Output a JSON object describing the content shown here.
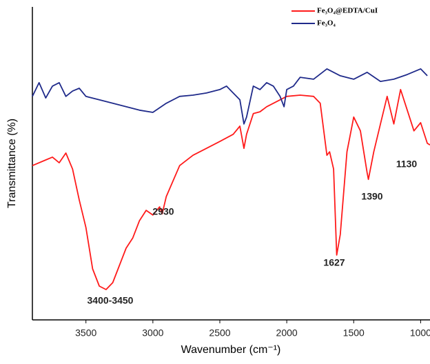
{
  "chart_data": {
    "type": "line",
    "x_label": "Wavenumber (cm⁻¹)",
    "y_label": "Transmittance (%)",
    "xlim": [
      3900,
      930
    ],
    "ylim": [
      0,
      100
    ],
    "xticks": [
      3500,
      3000,
      2500,
      2000,
      1500,
      1000
    ],
    "legend": "top-right",
    "series": [
      {
        "name": "Fe₃O₄@EDTA/CuI",
        "color": "#ff1a1a",
        "x": [
          3900,
          3800,
          3750,
          3700,
          3650,
          3600,
          3550,
          3500,
          3450,
          3400,
          3350,
          3300,
          3250,
          3200,
          3150,
          3100,
          3050,
          3000,
          2950,
          2930,
          2900,
          2800,
          2700,
          2600,
          2500,
          2400,
          2350,
          2320,
          2300,
          2250,
          2200,
          2150,
          2100,
          2050,
          2000,
          1900,
          1800,
          1750,
          1700,
          1680,
          1650,
          1627,
          1600,
          1550,
          1500,
          1450,
          1400,
          1390,
          1350,
          1300,
          1250,
          1200,
          1150,
          1100,
          1050,
          1000,
          950,
          930
        ],
        "values": [
          49.3,
          51.1,
          52.0,
          50.2,
          53.3,
          48.2,
          38.3,
          29.5,
          16.3,
          10.8,
          9.7,
          11.9,
          17.4,
          22.9,
          26.2,
          31.7,
          35.0,
          33.5,
          36.1,
          33.9,
          39.4,
          49.3,
          52.6,
          54.8,
          57.0,
          59.3,
          61.9,
          54.8,
          59.3,
          65.9,
          66.5,
          68.1,
          69.2,
          70.3,
          71.4,
          71.8,
          71.4,
          69.2,
          52.6,
          53.7,
          48.2,
          20.7,
          27.3,
          53.7,
          64.8,
          60.4,
          47.1,
          44.9,
          53.7,
          62.6,
          71.4,
          62.6,
          73.6,
          67.0,
          60.4,
          63.0,
          56.4,
          55.9
        ]
      },
      {
        "name": "Fe₃O₄",
        "color": "#1f2a8a",
        "x": [
          3900,
          3850,
          3800,
          3750,
          3700,
          3650,
          3600,
          3550,
          3500,
          3400,
          3300,
          3200,
          3100,
          3000,
          2900,
          2800,
          2700,
          2600,
          2500,
          2450,
          2400,
          2350,
          2320,
          2300,
          2250,
          2200,
          2150,
          2100,
          2050,
          2020,
          2000,
          1950,
          1900,
          1800,
          1700,
          1600,
          1500,
          1400,
          1300,
          1200,
          1100,
          1000,
          950
        ],
        "values": [
          71.4,
          75.8,
          70.9,
          74.7,
          75.8,
          71.4,
          73.1,
          74.0,
          71.4,
          70.3,
          69.2,
          68.1,
          67.0,
          66.3,
          69.2,
          71.4,
          71.8,
          72.5,
          73.6,
          74.7,
          72.5,
          70.3,
          62.6,
          64.8,
          74.7,
          73.6,
          75.8,
          74.7,
          71.4,
          68.1,
          73.6,
          74.7,
          77.5,
          76.9,
          80.2,
          78.0,
          76.9,
          79.1,
          76.2,
          76.9,
          78.4,
          80.2,
          78.0
        ]
      }
    ],
    "annotations": [
      "3400-3450",
      "2930",
      "1627",
      "1390",
      "1130"
    ]
  }
}
